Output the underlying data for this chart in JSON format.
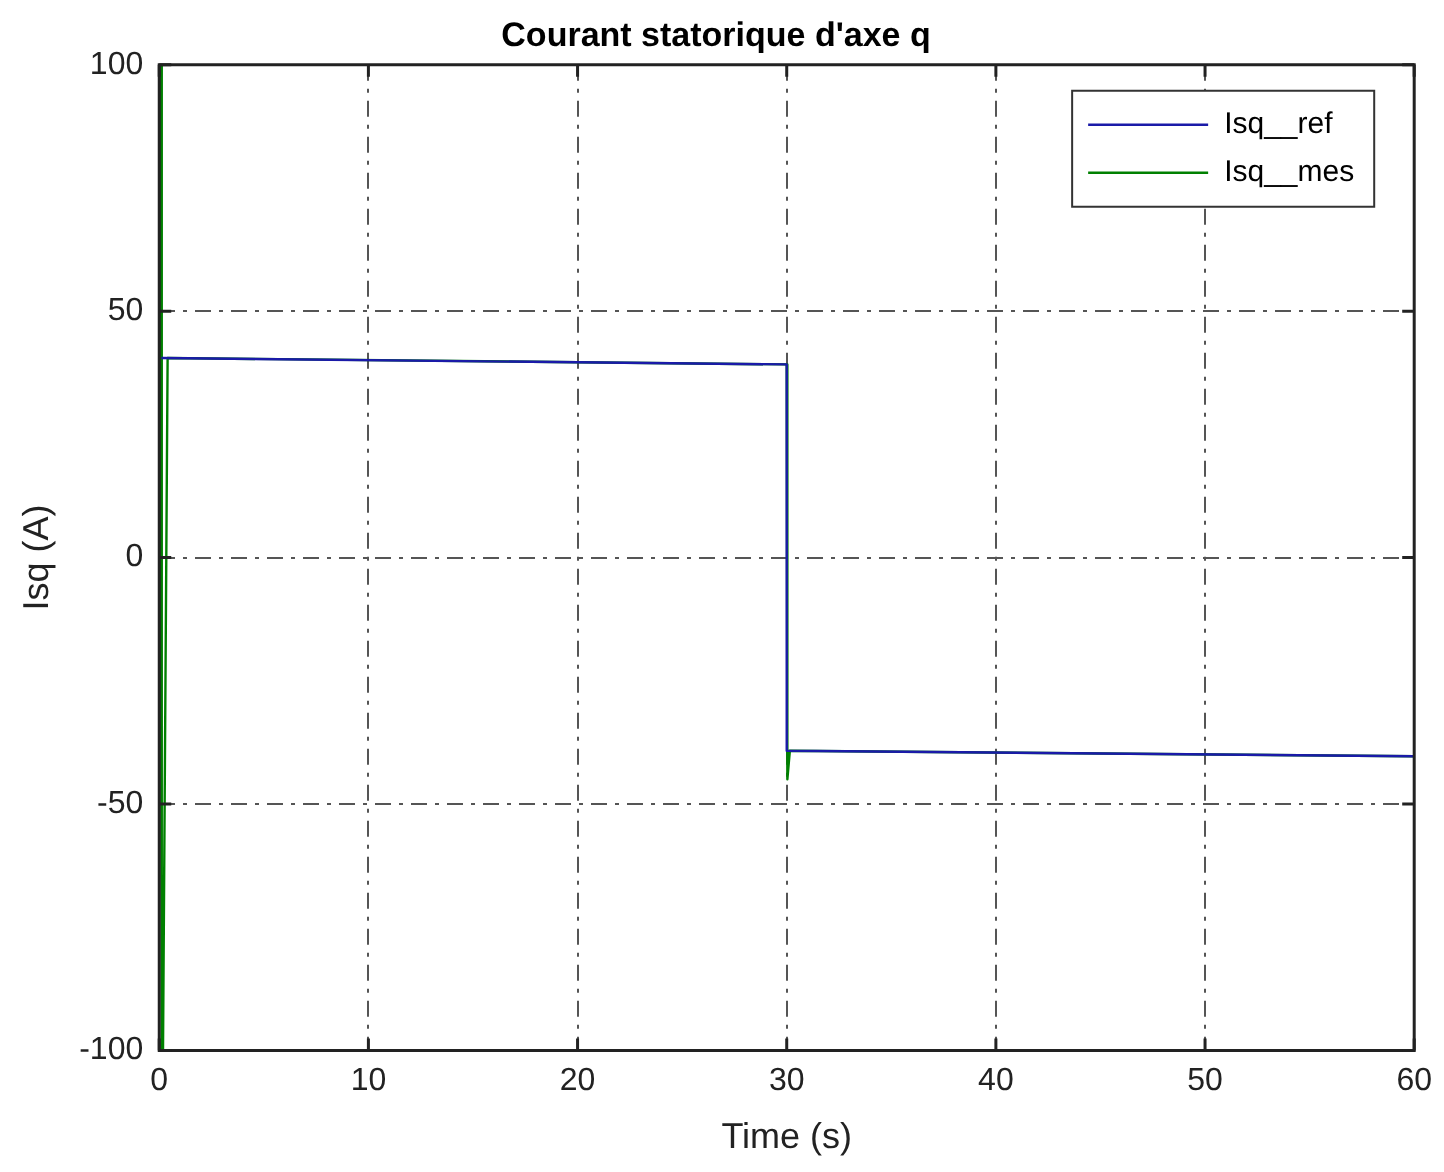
{
  "chart_data": {
    "type": "line",
    "title": "Courant statorique d'axe q",
    "xlabel": "Time (s)",
    "ylabel": "Isq (A)",
    "xlim": [
      0,
      60
    ],
    "xticks": [
      0,
      10,
      20,
      30,
      40,
      50,
      60
    ],
    "ylim": [
      -100,
      100
    ],
    "yticks": [
      -100,
      -50,
      0,
      50,
      100
    ],
    "grid": true,
    "legend": "top right",
    "marker": "none",
    "line_style": "solid",
    "series": [
      {
        "name": "Isq__ref",
        "color": "#1a1aa8",
        "x": [
          0.1,
          30,
          30,
          60
        ],
        "values": [
          40.5,
          39.2,
          -39.2,
          -40.3
        ]
      },
      {
        "name": "Isq__mes",
        "color": "#008000",
        "x": [
          0.05,
          0.12,
          0.18,
          0.4,
          30,
          30.03,
          30.15,
          60
        ],
        "values": [
          100,
          -100,
          -100,
          40.5,
          39.2,
          -45,
          -39.2,
          -40.3
        ]
      }
    ]
  }
}
